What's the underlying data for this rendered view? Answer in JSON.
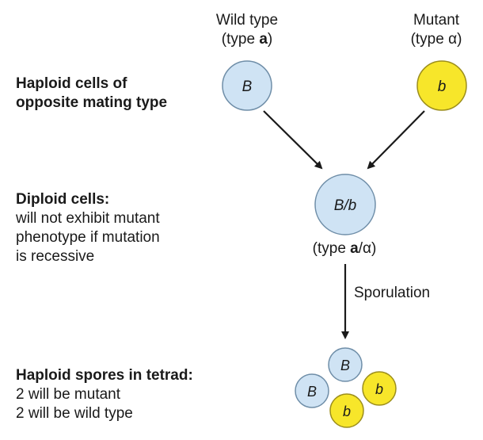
{
  "colors": {
    "wild_fill": "#cfe3f4",
    "wild_stroke": "#6f8ea8",
    "mutant_fill": "#f7e62a",
    "mutant_stroke": "#9c8e1c",
    "arrow": "#1a1a1a"
  },
  "left_labels": {
    "haploid_cells": {
      "title_line1": "Haploid cells of",
      "title_line2": "opposite mating type"
    },
    "diploid_cells": {
      "title": "Diploid cells:",
      "line1": "will not exhibit mutant",
      "line2": "phenotype if mutation",
      "line3": "is recessive"
    },
    "haploid_spores": {
      "title": "Haploid spores in tetrad:",
      "line1": "2 will be mutant",
      "line2": "2 will be wild type"
    }
  },
  "wild_type": {
    "name": "Wild type",
    "type_prefix": "(type ",
    "type_letter": "a",
    "type_suffix": ")",
    "allele": "B"
  },
  "mutant": {
    "name": "Mutant",
    "type_text": "(type α)",
    "allele": "b"
  },
  "diploid": {
    "allele": "B/b",
    "type_prefix": "(type ",
    "type_letter": "a",
    "type_suffix": "/α)"
  },
  "sporulation_label": "Sporulation",
  "spores": [
    {
      "allele": "B",
      "kind": "wild"
    },
    {
      "allele": "B",
      "kind": "wild"
    },
    {
      "allele": "b",
      "kind": "mutant"
    },
    {
      "allele": "b",
      "kind": "mutant"
    }
  ]
}
